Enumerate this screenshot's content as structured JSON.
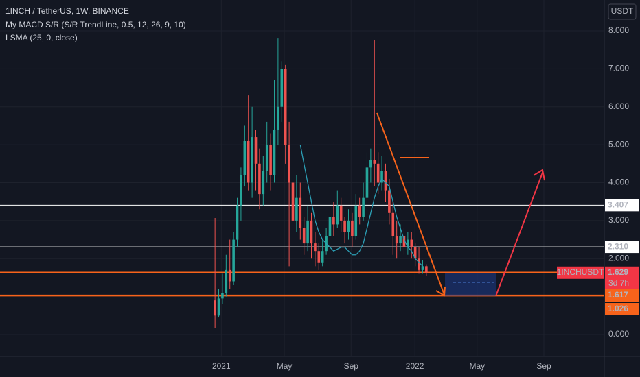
{
  "chart_data": {
    "type": "candlestick",
    "title": "1INCH / TetherUS, 1W, BINANCE",
    "indicators": [
      "My MACD S/R (S/R TrendLine, 0.5, 12, 26, 9, 10)"
    ],
    "currency": "USDT",
    "categories": [
      null,
      null,
      null,
      null,
      null,
      null,
      null,
      null,
      null,
      null,
      null,
      null,
      null,
      null,
      null,
      null,
      null,
      null,
      null,
      null,
      null,
      null,
      null,
      null,
      null,
      null,
      null,
      null,
      null,
      null,
      null,
      null,
      null,
      null,
      null,
      null,
      null,
      null,
      null,
      null,
      null,
      null,
      null,
      null,
      null,
      null,
      null,
      null,
      null,
      null,
      null,
      null,
      null,
      null,
      null,
      null,
      null,
      null
    ],
    "open": [
      0.9,
      0.5,
      0.95,
      1.1,
      1.7,
      1.4,
      2.5,
      3.4,
      4.2,
      5.1,
      4.0,
      5.2,
      4.5,
      3.7,
      4.3,
      5.0,
      4.2,
      5.4,
      6.0,
      7.0,
      5.0,
      4.0,
      3.0,
      3.6,
      2.8,
      2.4,
      3.0,
      2.4,
      2.2,
      1.9,
      2.2,
      2.6,
      3.1,
      2.9,
      3.4,
      3.0,
      2.7,
      3.0,
      2.6,
      3.4,
      3.1,
      3.6,
      4.4,
      4.6,
      4.5,
      4.0,
      4.3,
      3.8,
      3.2,
      2.6,
      2.4,
      2.6,
      2.3,
      2.5,
      2.3,
      2.0,
      1.7,
      1.8
    ],
    "close": [
      0.5,
      0.95,
      1.1,
      1.7,
      1.4,
      2.5,
      3.4,
      4.2,
      5.1,
      4.0,
      5.2,
      4.5,
      3.7,
      4.3,
      5.0,
      4.2,
      5.4,
      6.0,
      7.0,
      5.0,
      4.0,
      3.0,
      3.6,
      2.8,
      2.4,
      3.0,
      2.4,
      2.2,
      1.9,
      2.2,
      2.6,
      3.1,
      2.9,
      3.4,
      3.0,
      2.7,
      3.0,
      2.6,
      3.4,
      3.1,
      3.6,
      4.4,
      4.6,
      4.5,
      4.0,
      4.3,
      3.8,
      3.2,
      2.6,
      2.4,
      2.6,
      2.3,
      2.5,
      2.3,
      2.0,
      1.7,
      1.8,
      1.63
    ],
    "high": [
      3.07,
      1.2,
      1.6,
      2.1,
      2.5,
      2.7,
      3.6,
      4.4,
      5.5,
      6.3,
      6.0,
      5.4,
      4.9,
      4.7,
      5.6,
      5.3,
      6.7,
      7.8,
      7.2,
      7.1,
      5.6,
      4.6,
      4.2,
      4.0,
      3.1,
      3.4,
      3.2,
      2.7,
      2.4,
      2.5,
      2.8,
      3.4,
      3.5,
      3.8,
      3.6,
      3.1,
      3.3,
      3.2,
      3.7,
      3.6,
      4.0,
      4.8,
      4.9,
      7.75,
      4.8,
      4.7,
      4.5,
      4.1,
      3.5,
      3.0,
      2.9,
      2.8,
      2.7,
      2.7,
      2.4,
      2.3,
      1.95,
      1.85
    ],
    "low": [
      0.18,
      0.45,
      0.8,
      1.0,
      1.2,
      1.3,
      2.3,
      3.0,
      3.9,
      3.8,
      3.6,
      3.8,
      3.3,
      3.4,
      4.0,
      3.8,
      4.0,
      5.0,
      5.6,
      4.5,
      1.8,
      2.5,
      2.7,
      2.5,
      2.1,
      2.2,
      2.0,
      1.8,
      1.7,
      1.8,
      2.1,
      2.5,
      2.6,
      2.8,
      2.7,
      2.4,
      2.5,
      2.3,
      2.5,
      2.9,
      3.0,
      3.4,
      4.0,
      3.9,
      3.7,
      3.8,
      3.5,
      2.9,
      2.1,
      2.0,
      2.2,
      2.1,
      2.1,
      2.0,
      1.8,
      1.6,
      1.6,
      1.55
    ],
    "up_color": "#26a69a",
    "down_color": "#ef5350",
    "series": [
      {
        "name": "LSMA (25, 0, close)",
        "color": "#2c9fb5",
        "values": [
          null,
          null,
          null,
          null,
          null,
          null,
          null,
          null,
          null,
          null,
          null,
          null,
          null,
          null,
          null,
          null,
          null,
          null,
          null,
          null,
          null,
          null,
          null,
          5.0,
          4.5,
          4.0,
          3.5,
          3.0,
          2.7,
          2.5,
          2.4,
          2.3,
          2.2,
          2.25,
          2.3,
          2.3,
          2.2,
          2.1,
          2.1,
          2.2,
          2.4,
          2.8,
          3.2,
          3.6,
          3.9,
          4.1,
          4.0,
          3.9,
          3.5,
          3.1,
          2.8,
          2.5,
          2.3,
          2.2,
          2.0,
          1.9,
          1.8,
          null
        ]
      }
    ],
    "xlim": [
      -58,
      105
    ],
    "xticks": [
      {
        "value": 1.7,
        "label": "2021"
      },
      {
        "value": 18.7,
        "label": "May"
      },
      {
        "value": 36.7,
        "label": "Sep"
      },
      {
        "value": 53.9,
        "label": "2022"
      },
      {
        "value": 70.7,
        "label": "May"
      },
      {
        "value": 88.7,
        "label": "Sep"
      }
    ],
    "ylim": [
      -0.578,
      8.813
    ],
    "yticks": [
      {
        "value": 0,
        "label": "0.000"
      },
      {
        "value": 2,
        "label": "2.000"
      },
      {
        "value": 3,
        "label": "3.000"
      },
      {
        "value": 4,
        "label": "4.000"
      },
      {
        "value": 5,
        "label": "5.000"
      },
      {
        "value": 6,
        "label": "6.000"
      },
      {
        "value": 7,
        "label": "7.000"
      },
      {
        "value": 8,
        "label": "8.000"
      }
    ],
    "grid": true,
    "price_lines": [
      {
        "value": 3.407,
        "label": "3.407",
        "color": "#ffffff"
      },
      {
        "value": 2.31,
        "label": "2.310",
        "color": "#ffffff"
      },
      {
        "value": 1.629,
        "label": "1.629",
        "color": "#f7631b"
      },
      {
        "value": 1.026,
        "label": "1.026",
        "color": "#f7631b"
      }
    ],
    "last_price": {
      "symbol": "1INCHUSDT",
      "value": 1.629,
      "label": "1.629",
      "countdown": "3d 7h"
    },
    "other_price": {
      "value": 1.617,
      "label": "1.617"
    }
  }
}
